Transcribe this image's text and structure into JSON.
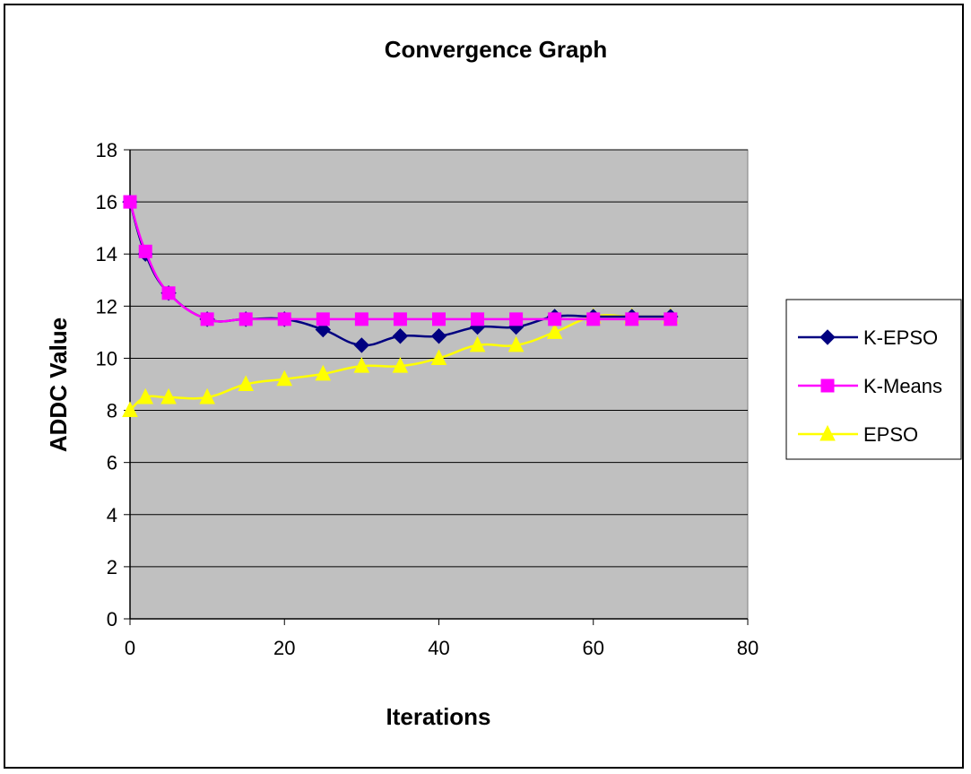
{
  "chart_data": {
    "type": "line",
    "title": "Convergence Graph",
    "xlabel": "Iterations",
    "ylabel": "ADDC Value",
    "xlim": [
      0,
      80
    ],
    "ylim": [
      0,
      18
    ],
    "x_ticks": [
      0,
      20,
      40,
      60,
      80
    ],
    "y_ticks": [
      0,
      2,
      4,
      6,
      8,
      10,
      12,
      14,
      16,
      18
    ],
    "grid": "horizontal",
    "plot_background": "#c0c0c0",
    "legend_position": "right",
    "series": [
      {
        "name": "K-EPSO",
        "color": "#000080",
        "marker": "diamond",
        "x": [
          0,
          2,
          5,
          10,
          15,
          20,
          25,
          30,
          35,
          40,
          45,
          50,
          55,
          60,
          65,
          70
        ],
        "y": [
          16,
          14,
          12.5,
          11.5,
          11.5,
          11.5,
          11.1,
          10.5,
          10.85,
          10.85,
          11.2,
          11.2,
          11.6,
          11.6,
          11.6,
          11.6
        ]
      },
      {
        "name": "K-Means",
        "color": "#ff00ff",
        "marker": "square",
        "x": [
          0,
          2,
          5,
          10,
          15,
          20,
          25,
          30,
          35,
          40,
          45,
          50,
          55,
          60,
          65,
          70
        ],
        "y": [
          16,
          14.1,
          12.5,
          11.5,
          11.5,
          11.5,
          11.5,
          11.5,
          11.5,
          11.5,
          11.5,
          11.5,
          11.5,
          11.5,
          11.5,
          11.5
        ]
      },
      {
        "name": "EPSO",
        "color": "#ffff00",
        "marker": "triangle",
        "x": [
          0,
          2,
          5,
          10,
          15,
          20,
          25,
          30,
          35,
          40,
          45,
          50,
          55,
          60,
          65,
          70
        ],
        "y": [
          8,
          8.5,
          8.5,
          8.5,
          9,
          9.2,
          9.4,
          9.7,
          9.7,
          10,
          10.5,
          10.5,
          11,
          11.6,
          11.6,
          11.6
        ]
      }
    ]
  }
}
